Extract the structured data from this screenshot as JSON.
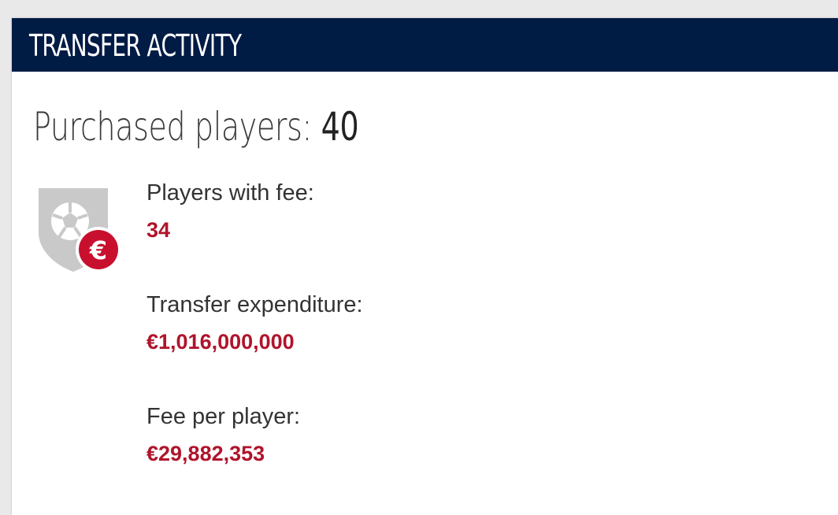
{
  "header": {
    "title": "TRANSFER ACTIVITY"
  },
  "summary": {
    "label": "Purchased players: ",
    "value": "40"
  },
  "icon": {
    "name": "shield-ball-euro-icon",
    "shield_color": "#c8c8c8",
    "badge_color": "#c8102e"
  },
  "stats": [
    {
      "label": "Players with fee:",
      "value": "34"
    },
    {
      "label": "Transfer expenditure:",
      "value": "€1,016,000,000"
    },
    {
      "label": "Fee per player:",
      "value": "€29,882,353"
    }
  ],
  "colors": {
    "header_bg": "#001b44",
    "value_red": "#b0142b"
  }
}
